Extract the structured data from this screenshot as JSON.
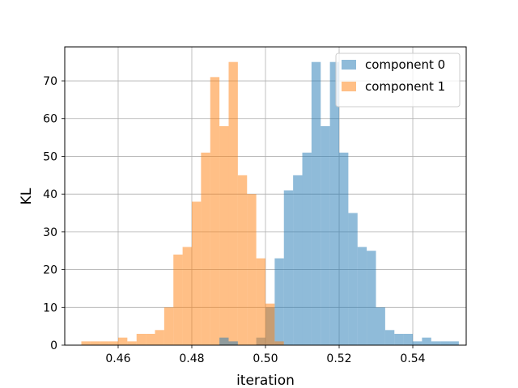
{
  "chart_data": {
    "type": "bar",
    "subtype": "histogram",
    "title": "",
    "xlabel": "iteration",
    "ylabel": "KL",
    "xlim": [
      0.4455,
      0.5545
    ],
    "ylim": [
      0,
      79
    ],
    "xticks": [
      0.46,
      0.48,
      0.5,
      0.52,
      0.54
    ],
    "xtick_labels": [
      "0.46",
      "0.48",
      "0.50",
      "0.52",
      "0.54"
    ],
    "yticks": [
      0,
      10,
      20,
      30,
      40,
      50,
      60,
      70
    ],
    "ytick_labels": [
      "0",
      "10",
      "20",
      "30",
      "40",
      "50",
      "60",
      "70"
    ],
    "grid": true,
    "legend_position": "top-right",
    "series": [
      {
        "name": "component 0",
        "color": "#1f77b4",
        "opacity": 0.5,
        "bin_start": 0.4975,
        "bin_width": 0.0025,
        "values": [
          2,
          10,
          23,
          41,
          45,
          51,
          75,
          58,
          75,
          51,
          35,
          26,
          25,
          10,
          4,
          3,
          3,
          1,
          2,
          1,
          1,
          1
        ]
      },
      {
        "name": "component 1",
        "color": "#ff7f0e",
        "opacity": 0.5,
        "bin_start": 0.45,
        "bin_width": 0.0025,
        "values": [
          1,
          1,
          1,
          1,
          2,
          1,
          3,
          3,
          4,
          10,
          24,
          26,
          38,
          51,
          71,
          58,
          75,
          45,
          40,
          23,
          11,
          1
        ]
      },
      {
        "name": "",
        "color": "#1f77b4",
        "opacity": 0.5,
        "bin_start": 0.4875,
        "bin_width": 0.0025,
        "values": [
          2,
          1
        ]
      }
    ]
  }
}
